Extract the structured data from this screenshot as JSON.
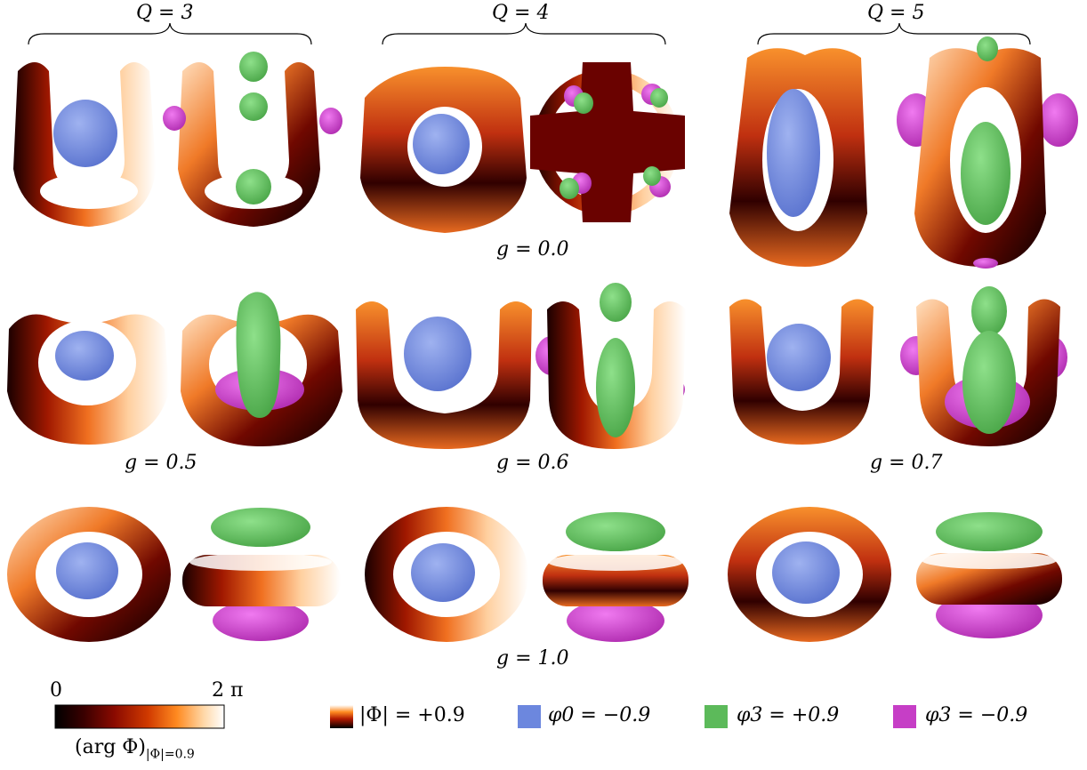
{
  "columns": [
    {
      "label": "Q = 3"
    },
    {
      "label": "Q = 4"
    },
    {
      "label": "Q = 5"
    }
  ],
  "coupling_labels": [
    "g = 0.0",
    "g = 0.5",
    "g = 0.6",
    "g = 0.7",
    "g = 1.0"
  ],
  "colorbar": {
    "min_label": "0",
    "max_label": "2 π",
    "caption": "(arg Φ)",
    "caption_subscript": "|Φ|=0.9",
    "stops": [
      "#000000",
      "#3a0000",
      "#8a0a00",
      "#d03a00",
      "#ff8a20",
      "#ffd8a8",
      "#ffffff"
    ]
  },
  "legend": [
    {
      "swatch": "gradient",
      "text": "|Φ| = +0.9"
    },
    {
      "swatch": "#6c87de",
      "text": "φ0 = −0.9"
    },
    {
      "swatch": "#5cba5a",
      "text": "φ3 = +0.9"
    },
    {
      "swatch": "#c63ec6",
      "text": "φ3 = −0.9"
    }
  ],
  "colors": {
    "phi0_blue": "#7088e0",
    "phi3_plus_green": "#5fc25c",
    "phi3_minus_magenta": "#d13ed1"
  }
}
